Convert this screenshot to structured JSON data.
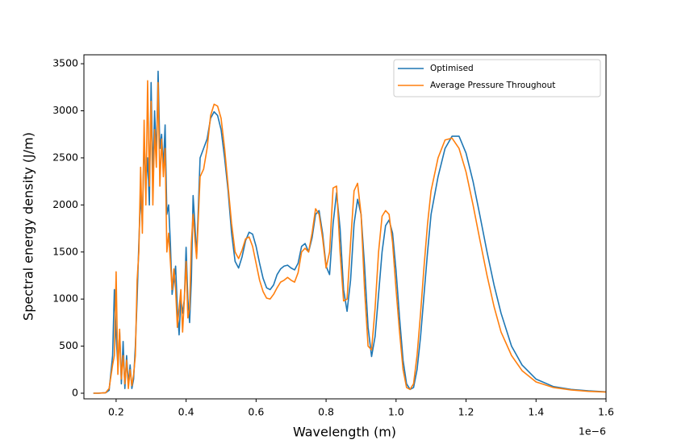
{
  "chart_data": {
    "type": "line",
    "x_label": "Wavelength (m)",
    "y_label": "Spectral energy density (J/m)",
    "x_offset_label": "1e−6",
    "legend": "upper right",
    "grid": false,
    "xlim": [
      0.108,
      1.6
    ],
    "ylim": [
      -60,
      3595
    ],
    "xticks": [
      0.2,
      0.4,
      0.6,
      0.8,
      {
        "value": 1,
        "label": "1.0"
      },
      1.2,
      1.4,
      1.6
    ],
    "yticks": [
      0,
      500,
      1000,
      1500,
      2000,
      2500,
      3000,
      3500
    ],
    "x": [
      0.135,
      0.15,
      0.17,
      0.18,
      0.19,
      0.195,
      0.2,
      0.205,
      0.21,
      0.215,
      0.22,
      0.225,
      0.23,
      0.235,
      0.24,
      0.245,
      0.25,
      0.255,
      0.26,
      0.265,
      0.27,
      0.275,
      0.28,
      0.285,
      0.29,
      0.295,
      0.3,
      0.305,
      0.31,
      0.315,
      0.32,
      0.325,
      0.33,
      0.335,
      0.34,
      0.345,
      0.35,
      0.355,
      0.36,
      0.365,
      0.37,
      0.375,
      0.38,
      0.385,
      0.39,
      0.395,
      0.4,
      0.405,
      0.41,
      0.415,
      0.42,
      0.425,
      0.43,
      0.44,
      0.45,
      0.46,
      0.47,
      0.48,
      0.49,
      0.5,
      0.51,
      0.52,
      0.53,
      0.54,
      0.55,
      0.56,
      0.57,
      0.58,
      0.59,
      0.6,
      0.61,
      0.62,
      0.63,
      0.64,
      0.65,
      0.66,
      0.67,
      0.68,
      0.69,
      0.7,
      0.71,
      0.72,
      0.73,
      0.74,
      0.75,
      0.76,
      0.77,
      0.78,
      0.79,
      0.8,
      0.81,
      0.82,
      0.83,
      0.84,
      0.85,
      0.86,
      0.87,
      0.88,
      0.89,
      0.9,
      0.91,
      0.92,
      0.93,
      0.94,
      0.95,
      0.96,
      0.97,
      0.98,
      0.99,
      1.0,
      1.01,
      1.02,
      1.03,
      1.04,
      1.05,
      1.06,
      1.07,
      1.08,
      1.09,
      1.1,
      1.12,
      1.14,
      1.16,
      1.18,
      1.2,
      1.22,
      1.24,
      1.26,
      1.28,
      1.3,
      1.33,
      1.36,
      1.4,
      1.45,
      1.5,
      1.55,
      1.6
    ],
    "series": [
      {
        "name": "Optimised",
        "color": "#1f77b4",
        "values": [
          0,
          0,
          5,
          30,
          400,
          1100,
          600,
          300,
          650,
          100,
          550,
          50,
          400,
          100,
          300,
          50,
          150,
          500,
          1000,
          1600,
          2100,
          1800,
          2700,
          2200,
          2500,
          2000,
          3300,
          2300,
          3000,
          2500,
          3420,
          2600,
          2750,
          2400,
          2850,
          1900,
          2000,
          1600,
          1050,
          1200,
          1350,
          900,
          620,
          1000,
          850,
          1000,
          1550,
          1000,
          750,
          1200,
          2100,
          1800,
          1450,
          2500,
          2600,
          2700,
          2920,
          2990,
          2950,
          2800,
          2500,
          2150,
          1700,
          1400,
          1330,
          1450,
          1620,
          1710,
          1690,
          1560,
          1380,
          1220,
          1120,
          1100,
          1150,
          1260,
          1320,
          1350,
          1360,
          1330,
          1310,
          1380,
          1560,
          1590,
          1500,
          1650,
          1900,
          1940,
          1700,
          1350,
          1260,
          1800,
          2130,
          1750,
          1100,
          870,
          1200,
          1800,
          2060,
          1900,
          1350,
          700,
          390,
          600,
          1050,
          1500,
          1780,
          1840,
          1700,
          1300,
          800,
          350,
          100,
          40,
          60,
          250,
          600,
          1050,
          1500,
          1900,
          2300,
          2600,
          2730,
          2730,
          2550,
          2250,
          1880,
          1500,
          1150,
          850,
          500,
          300,
          150,
          70,
          40,
          25,
          15
        ]
      },
      {
        "name": "Average Pressure Throughout",
        "color": "#ff7f0e",
        "values": [
          0,
          0,
          5,
          50,
          300,
          400,
          1290,
          200,
          680,
          150,
          400,
          100,
          350,
          50,
          250,
          80,
          200,
          400,
          1200,
          1500,
          2400,
          1700,
          2900,
          2000,
          3320,
          2200,
          3100,
          2000,
          2800,
          2400,
          3300,
          2200,
          2700,
          2300,
          2600,
          1500,
          1700,
          1400,
          1100,
          1320,
          1100,
          700,
          900,
          1100,
          650,
          1000,
          1400,
          800,
          900,
          1600,
          1900,
          1650,
          1430,
          2300,
          2380,
          2600,
          2950,
          3070,
          3050,
          2920,
          2600,
          2200,
          1800,
          1500,
          1430,
          1520,
          1640,
          1660,
          1560,
          1380,
          1200,
          1080,
          1010,
          1000,
          1050,
          1120,
          1180,
          1200,
          1230,
          1200,
          1180,
          1280,
          1500,
          1540,
          1500,
          1700,
          1960,
          1900,
          1650,
          1330,
          1500,
          2180,
          2200,
          1500,
          980,
          1000,
          1600,
          2150,
          2230,
          1900,
          1100,
          500,
          460,
          900,
          1500,
          1880,
          1940,
          1900,
          1600,
          1100,
          650,
          250,
          60,
          40,
          100,
          400,
          850,
          1350,
          1800,
          2150,
          2500,
          2690,
          2710,
          2600,
          2350,
          2000,
          1620,
          1250,
          920,
          650,
          400,
          240,
          120,
          60,
          35,
          20,
          12
        ]
      }
    ]
  }
}
